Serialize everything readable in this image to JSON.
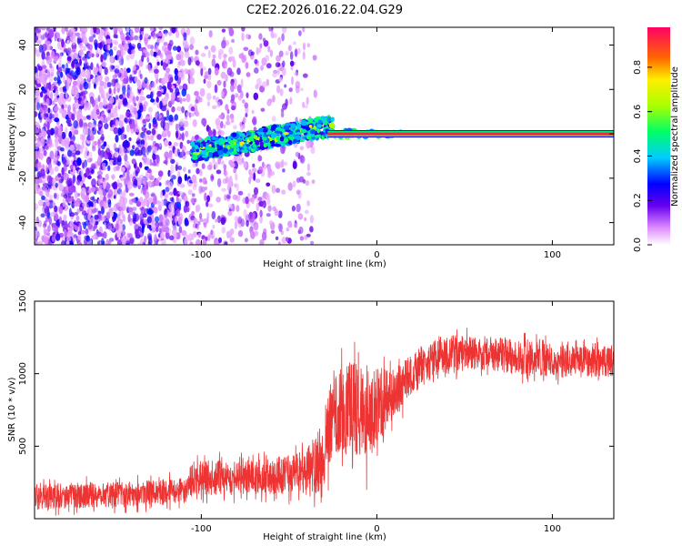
{
  "title": "C2E2.2026.016.22.04.G29",
  "chart_data": [
    {
      "type": "heatmap",
      "xlabel": "Height of straight line (km)",
      "ylabel": "Frequency (Hz)",
      "xlim": [
        -195,
        135
      ],
      "ylim": [
        -50,
        48
      ],
      "xticks": [
        -100,
        0,
        100
      ],
      "yticks": [
        -40,
        -20,
        0,
        20,
        40
      ],
      "colorbar": {
        "label": "Normalized spectral amplitude",
        "range": [
          0,
          0.98
        ],
        "ticks": [
          0.0,
          0.2,
          0.4,
          0.6,
          0.8
        ],
        "tick_labels": [
          "0.0",
          "0.2",
          "0.4",
          "0.6",
          "0.8"
        ]
      },
      "line": {
        "x_start": -28,
        "x_end": 135,
        "frequency": 0,
        "amplitude": 0.9
      },
      "scatter_regions": [
        {
          "x_range": [
            -195,
            -105
          ],
          "density": "high",
          "amplitude_range": [
            0.05,
            0.3
          ]
        },
        {
          "x_range": [
            -105,
            -35
          ],
          "density": "medium",
          "amplitude_range": [
            0.05,
            0.2
          ]
        },
        {
          "x_range": [
            -105,
            -25
          ],
          "frequency_drift": [
            -8,
            5
          ],
          "amplitude_range": [
            0.2,
            0.55
          ]
        }
      ]
    },
    {
      "type": "line",
      "xlabel": "Height of straight line (km)",
      "ylabel": "SNR (10 * v/v)",
      "xlim": [
        -195,
        135
      ],
      "ylim": [
        0,
        1500
      ],
      "xticks": [
        -100,
        0,
        100
      ],
      "yticks": [
        500,
        1000,
        1500
      ],
      "color": "#ee3333",
      "series": [
        {
          "name": "SNR",
          "x": [
            -195,
            -150,
            -110,
            -105,
            -60,
            -40,
            -30,
            -25,
            -15,
            -5,
            0,
            10,
            20,
            35,
            50,
            70,
            90,
            110,
            135
          ],
          "values": [
            150,
            170,
            190,
            280,
            290,
            320,
            450,
            750,
            760,
            720,
            780,
            860,
            1000,
            1130,
            1150,
            1130,
            1100,
            1080,
            1090
          ],
          "noise_amplitude": [
            90,
            90,
            90,
            120,
            120,
            160,
            250,
            300,
            350,
            350,
            260,
            180,
            140,
            130,
            120,
            120,
            120,
            110,
            110
          ]
        }
      ]
    }
  ]
}
